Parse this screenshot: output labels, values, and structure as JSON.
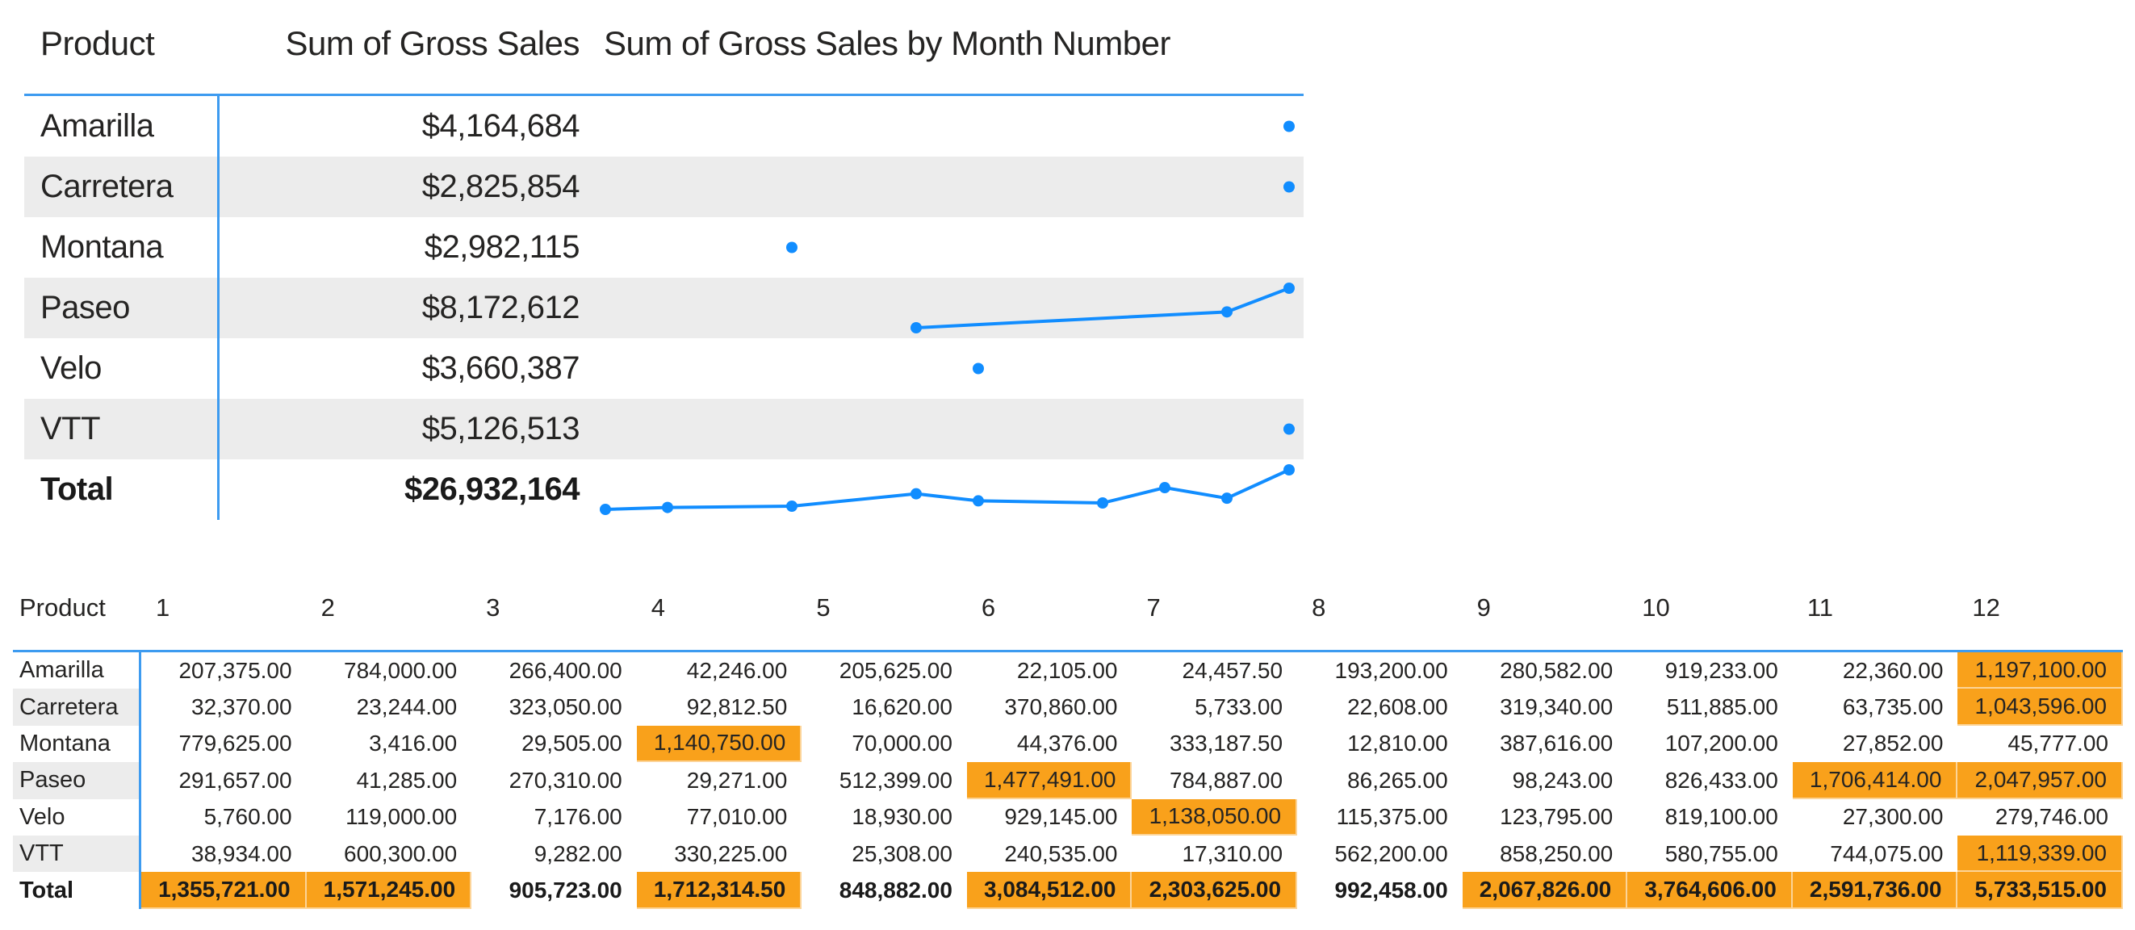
{
  "colors": {
    "sparkline_blue": "#118DFF",
    "gridline_blue": "#3D9BF0",
    "highlight_orange": "#F9A11B",
    "row_stripe_gray": "#ECECEC",
    "text_dark": "#252423"
  },
  "top_table": {
    "headers": {
      "product": "Product",
      "gross_sales": "Sum of Gross Sales",
      "sparkline": "Sum of Gross Sales by Month Number"
    },
    "rows": [
      {
        "product": "Amarilla",
        "gross_sales": "$4,164,684"
      },
      {
        "product": "Carretera",
        "gross_sales": "$2,825,854"
      },
      {
        "product": "Montana",
        "gross_sales": "$2,982,115"
      },
      {
        "product": "Paseo",
        "gross_sales": "$8,172,612"
      },
      {
        "product": "Velo",
        "gross_sales": "$3,660,387"
      },
      {
        "product": "VTT",
        "gross_sales": "$5,126,513"
      }
    ],
    "total_row": {
      "product": "Total",
      "gross_sales": "$26,932,164"
    }
  },
  "chart_data": {
    "type": "line",
    "title": "Sum of Gross Sales by Month Number",
    "xlabel": "Month Number",
    "x_range": [
      1,
      12
    ],
    "note": "In-table sparklines; only months with gross sales above 1,000,000 are plotted per product",
    "series": [
      {
        "name": "Amarilla",
        "points": [
          [
            12,
            1197100
          ]
        ]
      },
      {
        "name": "Carretera",
        "points": [
          [
            12,
            1043596
          ]
        ]
      },
      {
        "name": "Montana",
        "points": [
          [
            4,
            1140750
          ]
        ]
      },
      {
        "name": "Paseo",
        "points": [
          [
            6,
            1477491
          ],
          [
            11,
            1706414
          ],
          [
            12,
            2047957
          ]
        ]
      },
      {
        "name": "Velo",
        "points": [
          [
            7,
            1138050
          ]
        ]
      },
      {
        "name": "VTT",
        "points": [
          [
            12,
            1119339
          ]
        ]
      },
      {
        "name": "Total",
        "points": [
          [
            1,
            1355721
          ],
          [
            2,
            1571245
          ],
          [
            4,
            1712314.5
          ],
          [
            6,
            3084512
          ],
          [
            7,
            2303625
          ],
          [
            9,
            2067826
          ],
          [
            10,
            3764606
          ],
          [
            11,
            2591736
          ],
          [
            12,
            5733515
          ]
        ]
      }
    ]
  },
  "bottom_table": {
    "product_header": "Product",
    "month_headers": [
      "1",
      "2",
      "3",
      "4",
      "5",
      "6",
      "7",
      "8",
      "9",
      "10",
      "11",
      "12"
    ],
    "rows": [
      {
        "product": "Amarilla",
        "values": [
          "207,375.00",
          "784,000.00",
          "266,400.00",
          "42,246.00",
          "205,625.00",
          "22,105.00",
          "24,457.50",
          "193,200.00",
          "280,582.00",
          "919,233.00",
          "22,360.00",
          "1,197,100.00"
        ],
        "highlighted_months": [
          12
        ]
      },
      {
        "product": "Carretera",
        "values": [
          "32,370.00",
          "23,244.00",
          "323,050.00",
          "92,812.50",
          "16,620.00",
          "370,860.00",
          "5,733.00",
          "22,608.00",
          "319,340.00",
          "511,885.00",
          "63,735.00",
          "1,043,596.00"
        ],
        "highlighted_months": [
          12
        ]
      },
      {
        "product": "Montana",
        "values": [
          "779,625.00",
          "3,416.00",
          "29,505.00",
          "1,140,750.00",
          "70,000.00",
          "44,376.00",
          "333,187.50",
          "12,810.00",
          "387,616.00",
          "107,200.00",
          "27,852.00",
          "45,777.00"
        ],
        "highlighted_months": [
          4
        ]
      },
      {
        "product": "Paseo",
        "values": [
          "291,657.00",
          "41,285.00",
          "270,310.00",
          "29,271.00",
          "512,399.00",
          "1,477,491.00",
          "784,887.00",
          "86,265.00",
          "98,243.00",
          "826,433.00",
          "1,706,414.00",
          "2,047,957.00"
        ],
        "highlighted_months": [
          6,
          11,
          12
        ]
      },
      {
        "product": "Velo",
        "values": [
          "5,760.00",
          "119,000.00",
          "7,176.00",
          "77,010.00",
          "18,930.00",
          "929,145.00",
          "1,138,050.00",
          "115,375.00",
          "123,795.00",
          "819,100.00",
          "27,300.00",
          "279,746.00"
        ],
        "highlighted_months": [
          7
        ]
      },
      {
        "product": "VTT",
        "values": [
          "38,934.00",
          "600,300.00",
          "9,282.00",
          "330,225.00",
          "25,308.00",
          "240,535.00",
          "17,310.00",
          "562,200.00",
          "858,250.00",
          "580,755.00",
          "744,075.00",
          "1,119,339.00"
        ],
        "highlighted_months": [
          12
        ]
      }
    ],
    "total_row": {
      "product": "Total",
      "values": [
        "1,355,721.00",
        "1,571,245.00",
        "905,723.00",
        "1,712,314.50",
        "848,882.00",
        "3,084,512.00",
        "2,303,625.00",
        "992,458.00",
        "2,067,826.00",
        "3,764,606.00",
        "2,591,736.00",
        "5,733,515.00"
      ],
      "highlighted_months": [
        1,
        2,
        4,
        6,
        7,
        9,
        10,
        11,
        12
      ]
    }
  }
}
